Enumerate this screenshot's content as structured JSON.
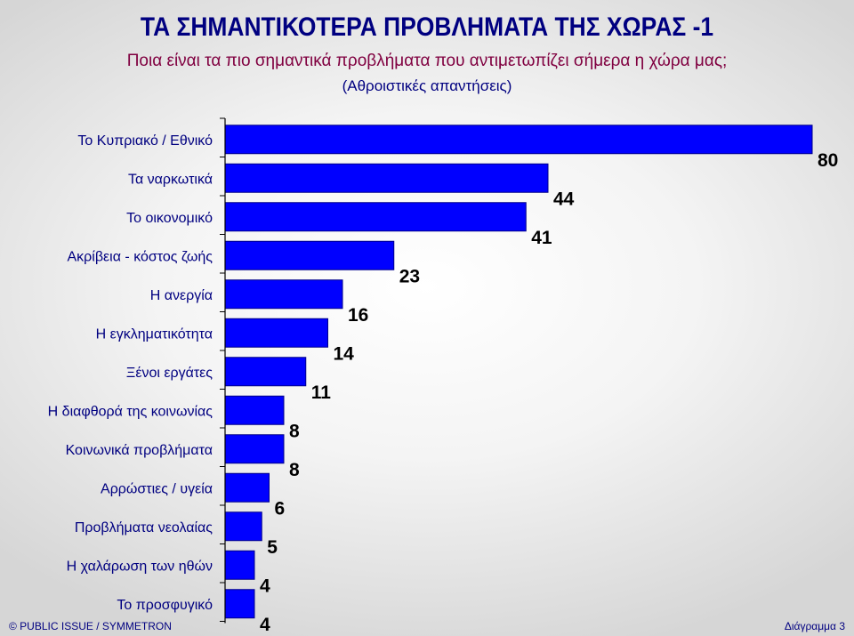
{
  "header": {
    "title": "ΤΑ ΣΗΜΑΝΤΙΚΟΤΕΡΑ ΠΡΟΒΛΗΜΑΤΑ ΤΗΣ ΧΩΡΑΣ -1",
    "subtitle": "Ποια είναι τα πιο σημαντικά προβλήματα που αντιμετωπίζει σήμερα η χώρα μας;",
    "note": "(Αθροιστικές απαντήσεις)"
  },
  "footer": {
    "left": "© PUBLIC ISSUE / SYMMETRON",
    "right": "Διάγραμμα 3"
  },
  "colors": {
    "bar": "#0000ff",
    "title": "#000080",
    "subtitle": "#800040",
    "label": "#000080"
  },
  "chart_data": {
    "type": "bar",
    "orientation": "horizontal",
    "categories": [
      "Το Κυπριακό / Εθνικό",
      "Τα ναρκωτικά",
      "Το οικονομικό",
      "Ακρίβεια - κόστος ζωής",
      "Η ανεργία",
      "Η εγκληματικότητα",
      "Ξένοι εργάτες",
      "Η διαφθορά της κοινωνίας",
      "Κοινωνικά προβλήματα",
      "Αρρώστιες / υγεία",
      "Προβλήματα νεολαίας",
      "Η χαλάρωση των ηθών",
      "Το προσφυγικό"
    ],
    "values": [
      80,
      44,
      41,
      23,
      16,
      14,
      11,
      8,
      8,
      6,
      5,
      4,
      4
    ],
    "data_labels": [
      "80",
      "44",
      "41",
      "23",
      "16",
      "14",
      "11",
      "8",
      "8",
      "6",
      "5",
      "4",
      "4"
    ],
    "xlim": [
      0,
      80
    ],
    "grid": false,
    "legend": "none"
  }
}
